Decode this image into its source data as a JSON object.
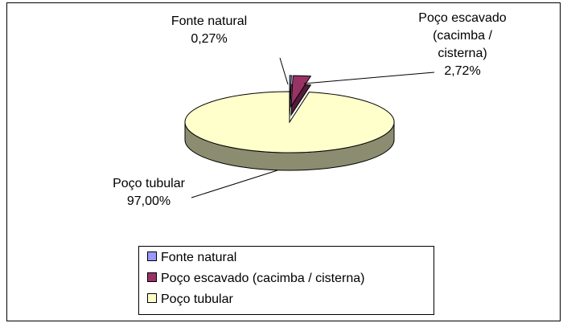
{
  "chart_data": {
    "type": "pie",
    "categories": [
      "Fonte natural",
      "Poço escavado (cacimba / cisterna)",
      "Poço tubular"
    ],
    "values": [
      0.27,
      2.72,
      97.0
    ],
    "value_labels": [
      "0,27%",
      "2,72%",
      "97,00%"
    ],
    "colors": [
      "#9999FF",
      "#993366",
      "#FFFFCC"
    ],
    "legend": "bottom"
  }
}
